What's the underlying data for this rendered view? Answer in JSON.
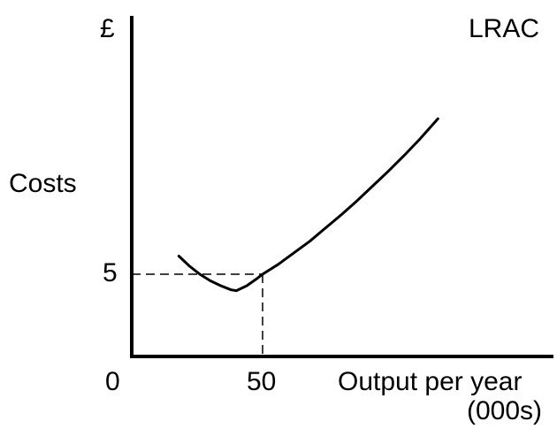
{
  "chart_data": {
    "type": "line",
    "title": "",
    "ylabel": "Costs",
    "y_unit_label": "£",
    "xlabel": "Output per year",
    "x_unit_label": "(000s)",
    "x_origin_label": "0",
    "x_ticks": [
      "50"
    ],
    "y_ticks": [
      "5"
    ],
    "xlim": [
      0,
      125
    ],
    "ylim": [
      0,
      15
    ],
    "grid": false,
    "series": [
      {
        "name": "LRAC",
        "x": [
          18,
          22,
          26,
          30,
          34,
          38,
          40,
          44,
          48,
          50,
          56,
          62,
          68,
          74,
          80,
          86,
          92,
          98,
          104,
          110,
          117
        ],
        "y": [
          6.1,
          5.5,
          5.0,
          4.6,
          4.3,
          4.05,
          4.0,
          4.3,
          4.75,
          5.0,
          5.6,
          6.3,
          7.0,
          7.8,
          8.6,
          9.45,
          10.35,
          11.25,
          12.2,
          13.2,
          14.45
        ]
      }
    ],
    "reference_lines": [
      {
        "x": 50,
        "y": 5,
        "style": "dashed"
      }
    ],
    "colors": {
      "line": "#000000",
      "axes": "#000000"
    }
  }
}
